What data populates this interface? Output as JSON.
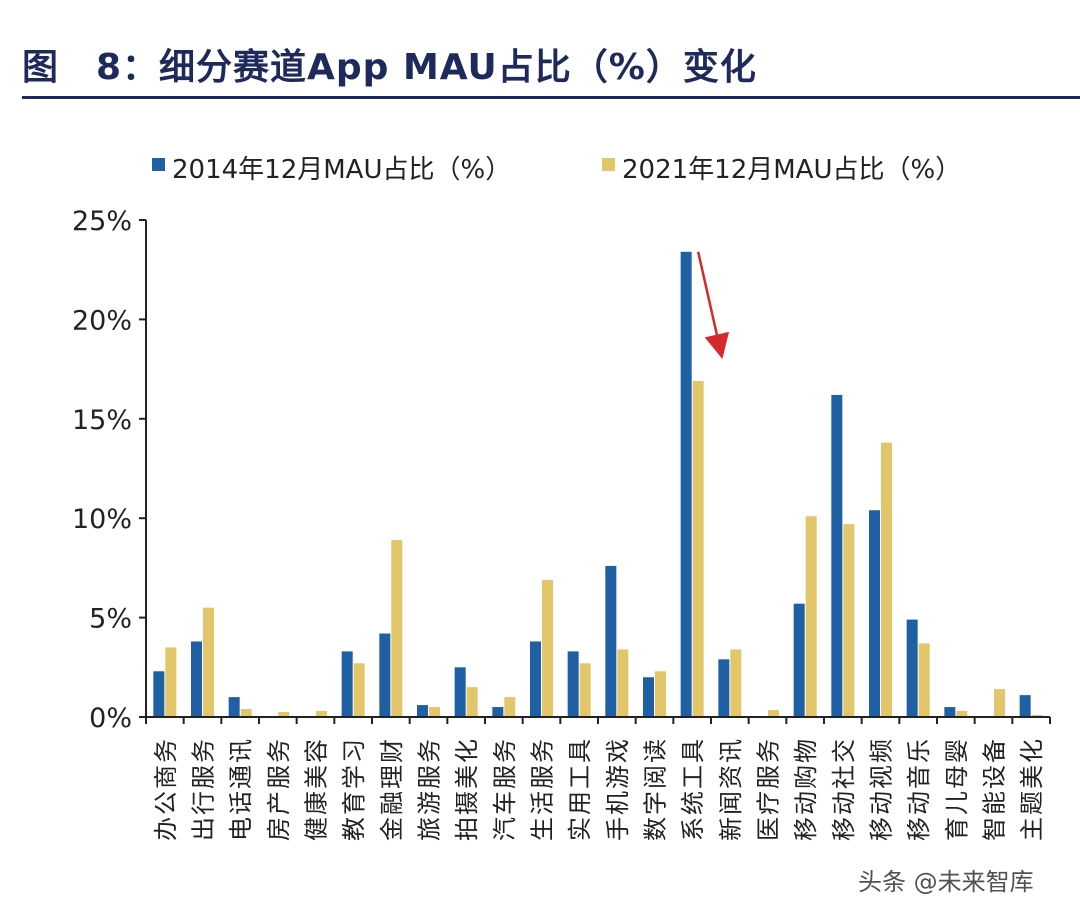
{
  "page": {
    "title": "图　8：细分赛道App MAU占比（%）变化",
    "watermark": "头条 @未来智库"
  },
  "colors": {
    "series_2014": "#1f5fa3",
    "series_2021": "#e3c56a",
    "title": "#1f2a5c",
    "arrow": "#d42a2a"
  },
  "chart_data": {
    "type": "bar",
    "title": "",
    "xlabel": "",
    "ylabel": "",
    "ylim": [
      0,
      25
    ],
    "yticks": [
      0,
      5,
      10,
      15,
      20,
      25
    ],
    "ytick_labels": [
      "0%",
      "5%",
      "10%",
      "15%",
      "20%",
      "25%"
    ],
    "legend_position": "top",
    "categories": [
      "办公商务",
      "出行服务",
      "电话通讯",
      "房产服务",
      "健康美容",
      "教育学习",
      "金融理财",
      "旅游服务",
      "拍摄美化",
      "汽车服务",
      "生活服务",
      "实用工具",
      "手机游戏",
      "数字阅读",
      "系统工具",
      "新闻资讯",
      "医疗服务",
      "移动购物",
      "移动社交",
      "移动视频",
      "移动音乐",
      "育儿母婴",
      "智能设备",
      "主题美化"
    ],
    "series": [
      {
        "name": "2014年12月MAU占比（%）",
        "values": [
          2.3,
          3.8,
          1.0,
          0.0,
          0.0,
          3.3,
          4.2,
          0.6,
          2.5,
          0.5,
          3.8,
          3.3,
          7.6,
          2.0,
          23.4,
          2.9,
          0.0,
          5.7,
          16.2,
          10.4,
          4.9,
          0.5,
          0.0,
          1.1
        ]
      },
      {
        "name": "2021年12月MAU占比（%）",
        "values": [
          3.5,
          5.5,
          0.4,
          0.25,
          0.3,
          2.7,
          8.9,
          0.5,
          1.5,
          1.0,
          6.9,
          2.7,
          3.4,
          2.3,
          16.9,
          3.4,
          0.35,
          10.1,
          9.7,
          13.8,
          3.7,
          0.3,
          1.4,
          0.1
        ]
      }
    ],
    "annotations": [
      {
        "type": "arrow",
        "target_category": "系统工具",
        "meaning": "decline from 2014 to 2021"
      }
    ]
  }
}
